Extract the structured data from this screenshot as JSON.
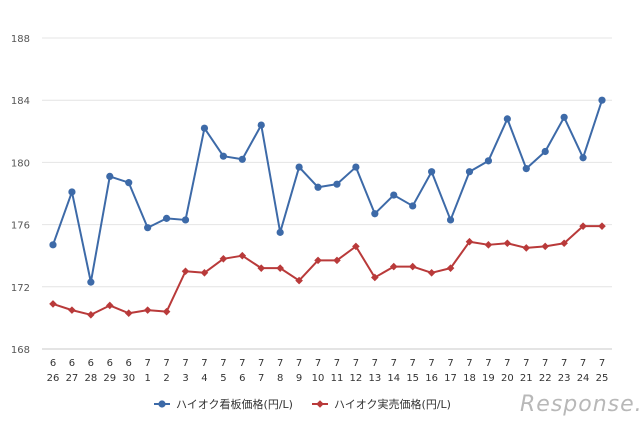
{
  "chart_data": {
    "type": "line",
    "categories": [
      [
        "6",
        "26"
      ],
      [
        "6",
        "27"
      ],
      [
        "6",
        "28"
      ],
      [
        "6",
        "29"
      ],
      [
        "6",
        "30"
      ],
      [
        "7",
        "1"
      ],
      [
        "7",
        "2"
      ],
      [
        "7",
        "3"
      ],
      [
        "7",
        "4"
      ],
      [
        "7",
        "5"
      ],
      [
        "7",
        "6"
      ],
      [
        "7",
        "7"
      ],
      [
        "7",
        "8"
      ],
      [
        "7",
        "9"
      ],
      [
        "7",
        "10"
      ],
      [
        "7",
        "11"
      ],
      [
        "7",
        "12"
      ],
      [
        "7",
        "13"
      ],
      [
        "7",
        "14"
      ],
      [
        "7",
        "15"
      ],
      [
        "7",
        "16"
      ],
      [
        "7",
        "17"
      ],
      [
        "7",
        "18"
      ],
      [
        "7",
        "19"
      ],
      [
        "7",
        "20"
      ],
      [
        "7",
        "21"
      ],
      [
        "7",
        "22"
      ],
      [
        "7",
        "23"
      ],
      [
        "7",
        "24"
      ],
      [
        "7",
        "25"
      ]
    ],
    "yticks": [
      "168",
      "172",
      "176",
      "180",
      "184",
      "188"
    ],
    "ylim": [
      168,
      188
    ],
    "grid": true,
    "legend_position": "bottom",
    "series": [
      {
        "name": "ハイオク看板価格(円/L)",
        "color": "#3d6aa8",
        "marker": "circle",
        "values": [
          174.7,
          178.1,
          172.3,
          179.1,
          178.7,
          175.8,
          176.4,
          176.3,
          182.2,
          180.4,
          180.2,
          182.4,
          175.5,
          179.7,
          178.4,
          178.6,
          179.7,
          176.7,
          177.9,
          177.2,
          179.4,
          176.3,
          179.4,
          180.1,
          182.8,
          179.6,
          180.7,
          182.9,
          180.3,
          184.0
        ]
      },
      {
        "name": "ハイオク実売価格(円/L)",
        "color": "#b93a3a",
        "marker": "diamond",
        "values": [
          170.9,
          170.5,
          170.2,
          170.8,
          170.3,
          170.5,
          170.4,
          173.0,
          172.9,
          173.8,
          174.0,
          173.2,
          173.2,
          172.4,
          173.7,
          173.7,
          174.6,
          172.6,
          173.3,
          173.3,
          172.9,
          173.2,
          174.9,
          174.7,
          174.8,
          174.5,
          174.6,
          174.8,
          175.9,
          175.9
        ]
      }
    ]
  },
  "watermark": "Response."
}
